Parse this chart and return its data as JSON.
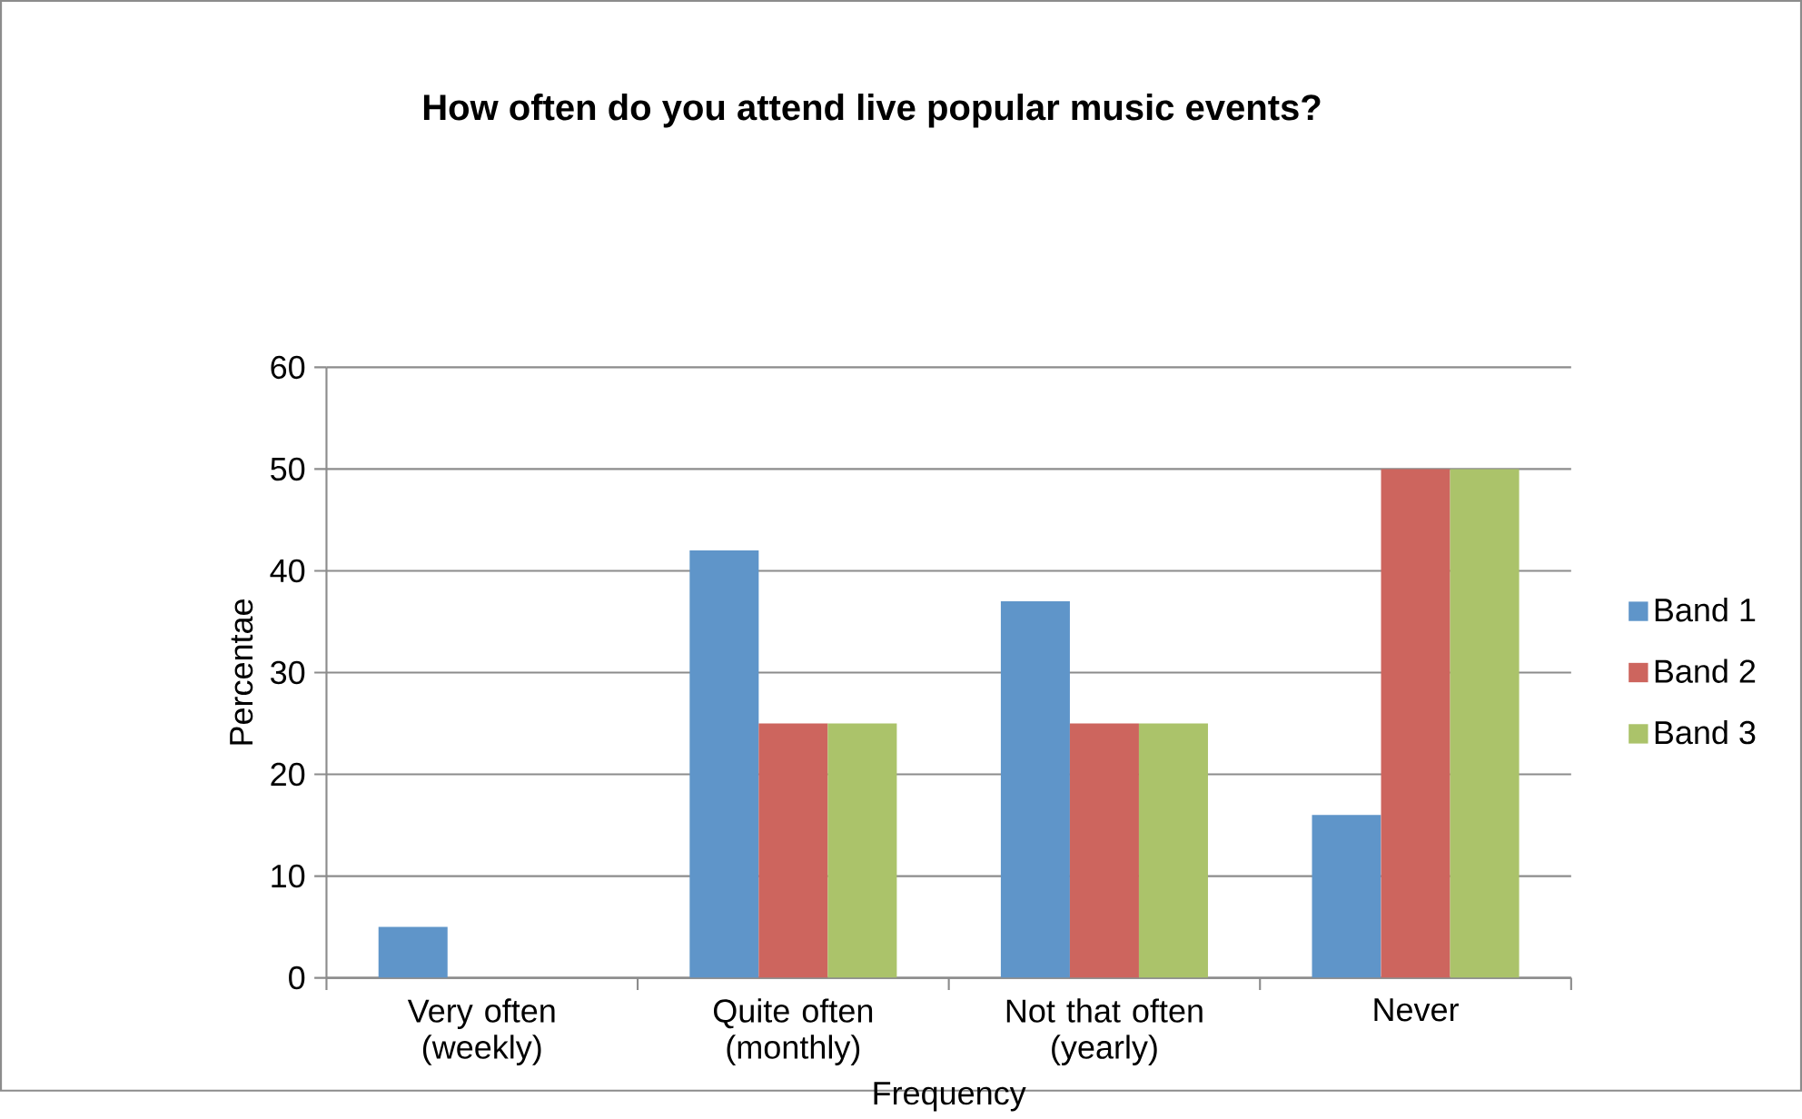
{
  "chart_data": {
    "type": "bar",
    "title": "How often do you attend live popular music events?",
    "xlabel": "Frequency",
    "ylabel": "Percentae",
    "categories": [
      "Very often (weekly)",
      "Quite often (monthly)",
      "Not that often (yearly)",
      "Never"
    ],
    "series": [
      {
        "name": "Band 1",
        "color": "#5f95c9",
        "values": [
          5,
          42,
          37,
          16
        ]
      },
      {
        "name": "Band 2",
        "color": "#cd655e",
        "values": [
          0,
          25,
          25,
          50
        ]
      },
      {
        "name": "Band 3",
        "color": "#abc36a",
        "values": [
          0,
          25,
          25,
          50
        ]
      }
    ],
    "ylim": [
      0,
      60
    ],
    "yticks": [
      0,
      10,
      20,
      30,
      40,
      50,
      60
    ],
    "grid": "y",
    "legend": "right"
  }
}
